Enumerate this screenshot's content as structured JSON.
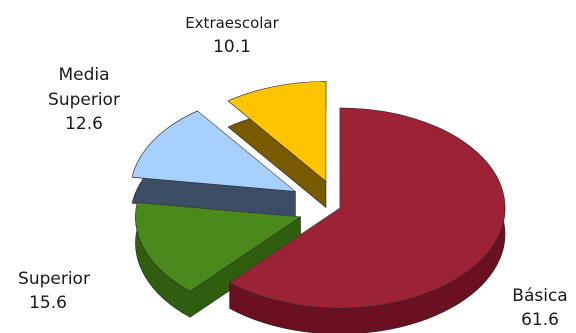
{
  "chart_data": {
    "type": "pie",
    "style": "3d-exploded",
    "title": "",
    "legend": "none",
    "slices": [
      {
        "label_lines": [
          "Básica"
        ],
        "value": 61.6,
        "value_text": "61.6",
        "color": "#9b2335",
        "side_color": "#6b1020"
      },
      {
        "label_lines": [
          "Superior"
        ],
        "value": 15.6,
        "value_text": "15.6",
        "color": "#4a8a1c",
        "side_color": "#2f5e0f"
      },
      {
        "label_lines": [
          "Media",
          "Superior"
        ],
        "value": 12.6,
        "value_text": "12.6",
        "color": "#a8d0ff",
        "side_color": "#3b4e66"
      },
      {
        "label_lines": [
          "Extraescolar"
        ],
        "value": 10.1,
        "value_text": "10.1",
        "color": "#ffc400",
        "side_color": "#7a5a00"
      }
    ]
  }
}
